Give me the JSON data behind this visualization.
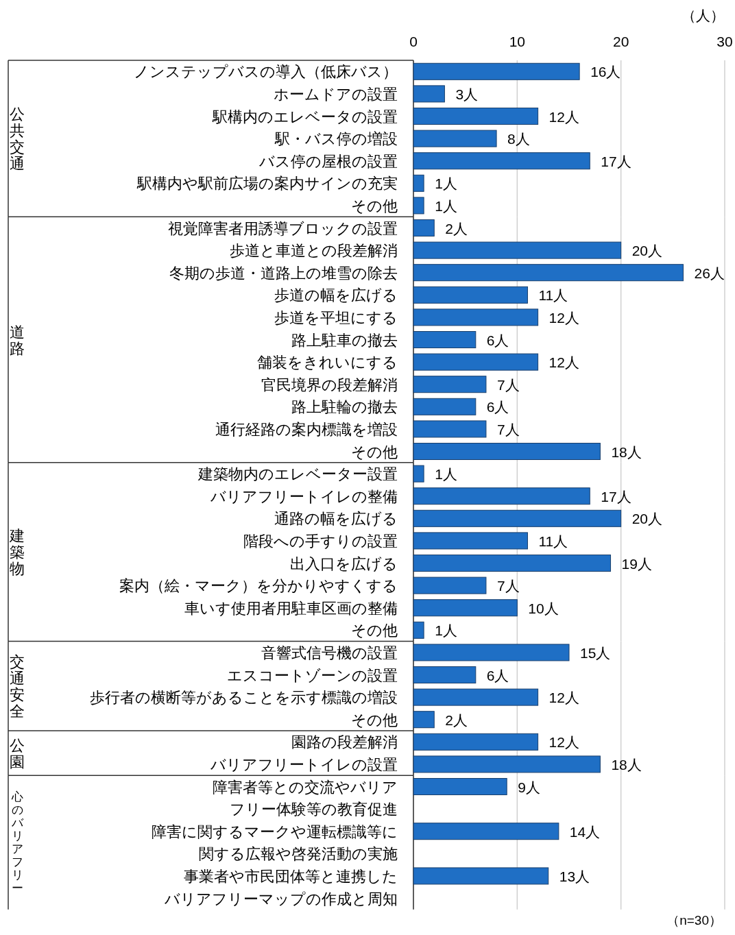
{
  "chart_data": [
    {
      "type": "bar",
      "orientation": "horizontal",
      "annotations": [
        "公共交通"
      ],
      "xlabel": "（人）",
      "xlim": [
        0,
        30
      ],
      "xticks": [
        0,
        10,
        20,
        30
      ],
      "grid": "x",
      "color": "#1f6fc5",
      "categories": [
        "ノンステップバスの導入（低床バス）",
        "ホームドアの設置",
        "駅構内のエレベータの設置",
        "駅・バス停の増設",
        "バス停の屋根の設置",
        "駅構内や駅前広場の案内サインの充実",
        "その他"
      ],
      "values": [
        16,
        3,
        12,
        8,
        17,
        1,
        1
      ],
      "value_labels": [
        "16人",
        "3人",
        "12人",
        "8人",
        "17人",
        "1人",
        "1人"
      ]
    },
    {
      "type": "bar",
      "orientation": "horizontal",
      "annotations": [
        "道路"
      ],
      "xlim": [
        0,
        30
      ],
      "xticks": [
        0,
        10,
        20,
        30
      ],
      "grid": "x",
      "tick_labels": "y",
      "color": "#1f6fc5",
      "categories": [
        "視覚障害者用誘導ブロックの設置",
        "歩道と車道との段差解消",
        "冬期の歩道・道路上の堆雪の除去",
        "歩道の幅を広げる",
        "歩道を平坦にする",
        "路上駐車の撤去",
        "舗装をきれいにする",
        "官民境界の段差解消",
        "路上駐輪の撤去",
        "通行経路の案内標識を増設",
        "その他"
      ],
      "values": [
        2,
        20,
        26,
        11,
        12,
        6,
        12,
        7,
        6,
        7,
        18
      ],
      "value_labels": [
        "2人",
        "20人",
        "26人",
        "11人",
        "12人",
        "6人",
        "12人",
        "7人",
        "6人",
        "7人",
        "18人"
      ]
    },
    {
      "type": "bar",
      "orientation": "horizontal",
      "annotations": [
        "建築物"
      ],
      "xlim": [
        0,
        30
      ],
      "xticks": [
        0,
        10,
        20,
        30
      ],
      "grid": "x",
      "tick_labels": "y",
      "color": "#1f6fc5",
      "categories": [
        "建築物内のエレベーター設置",
        "バリアフリートイレの整備",
        "通路の幅を広げる",
        "階段への手すりの設置",
        "出入口を広げる",
        "案内（絵・マーク）を分かりやすくする",
        "車いす使用者用駐車区画の整備",
        "その他"
      ],
      "values": [
        1,
        17,
        20,
        11,
        19,
        7,
        10,
        1
      ],
      "value_labels": [
        "1人",
        "17人",
        "20人",
        "11人",
        "19人",
        "7人",
        "10人",
        "1人"
      ]
    },
    {
      "type": "bar",
      "orientation": "horizontal",
      "annotations": [
        "交通安全"
      ],
      "xlim": [
        0,
        30
      ],
      "xticks": [
        0,
        10,
        20,
        30
      ],
      "grid": "x",
      "tick_labels": "y",
      "color": "#1f6fc5",
      "categories": [
        "音響式信号機の設置",
        "エスコートゾーンの設置",
        "歩行者の横断等があることを示す標識の増設",
        "その他"
      ],
      "values": [
        15,
        6,
        12,
        2
      ],
      "value_labels": [
        "15人",
        "6人",
        "12人",
        "2人"
      ]
    },
    {
      "type": "bar",
      "orientation": "horizontal",
      "annotations": [
        "公園"
      ],
      "xlim": [
        0,
        30
      ],
      "xticks": [
        0,
        10,
        20,
        30
      ],
      "grid": "x",
      "tick_labels": "y",
      "color": "#1f6fc5",
      "categories": [
        "園路の段差解消",
        "バリアフリートイレの設置"
      ],
      "values": [
        12,
        18
      ],
      "value_labels": [
        "12人",
        "18人"
      ]
    },
    {
      "type": "bar",
      "orientation": "horizontal",
      "annotations": [
        "心のバリアフリー",
        "（n=30）"
      ],
      "xlim": [
        0,
        30
      ],
      "xticks": [
        0,
        10,
        20,
        30
      ],
      "grid": "x",
      "tick_labels": "y",
      "color": "#1f6fc5",
      "categories": [
        "障害者等との交流やバリア",
        "フリー体験等の教育促進",
        "障害に関するマークや運転標識等に",
        "関する広報や啓発活動の実施",
        "事業者や市民団体等と連携した",
        "バリアフリーマップの作成と周知"
      ],
      "values": [
        9,
        null,
        14,
        null,
        13,
        null
      ],
      "value_labels": [
        "9人",
        null,
        "14人",
        null,
        "13人",
        null
      ]
    }
  ]
}
